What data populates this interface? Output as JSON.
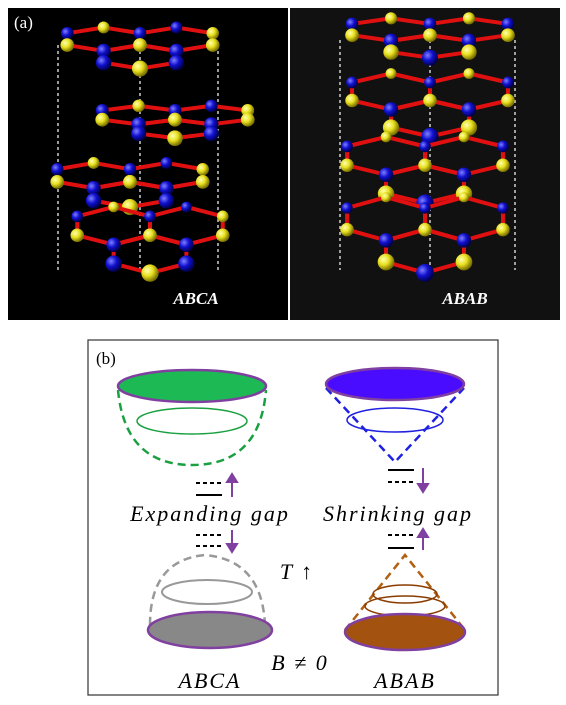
{
  "panel_a": {
    "label": "(a)",
    "left_caption": "ABCA",
    "right_caption": "ABAB"
  },
  "panel_b": {
    "label": "(b)",
    "left_text": "Expanding gap",
    "right_text": "Shrinking gap",
    "temperature": "T ↑",
    "field": "B ≠ 0",
    "left_caption": "ABCA",
    "right_caption": "ABAB"
  }
}
